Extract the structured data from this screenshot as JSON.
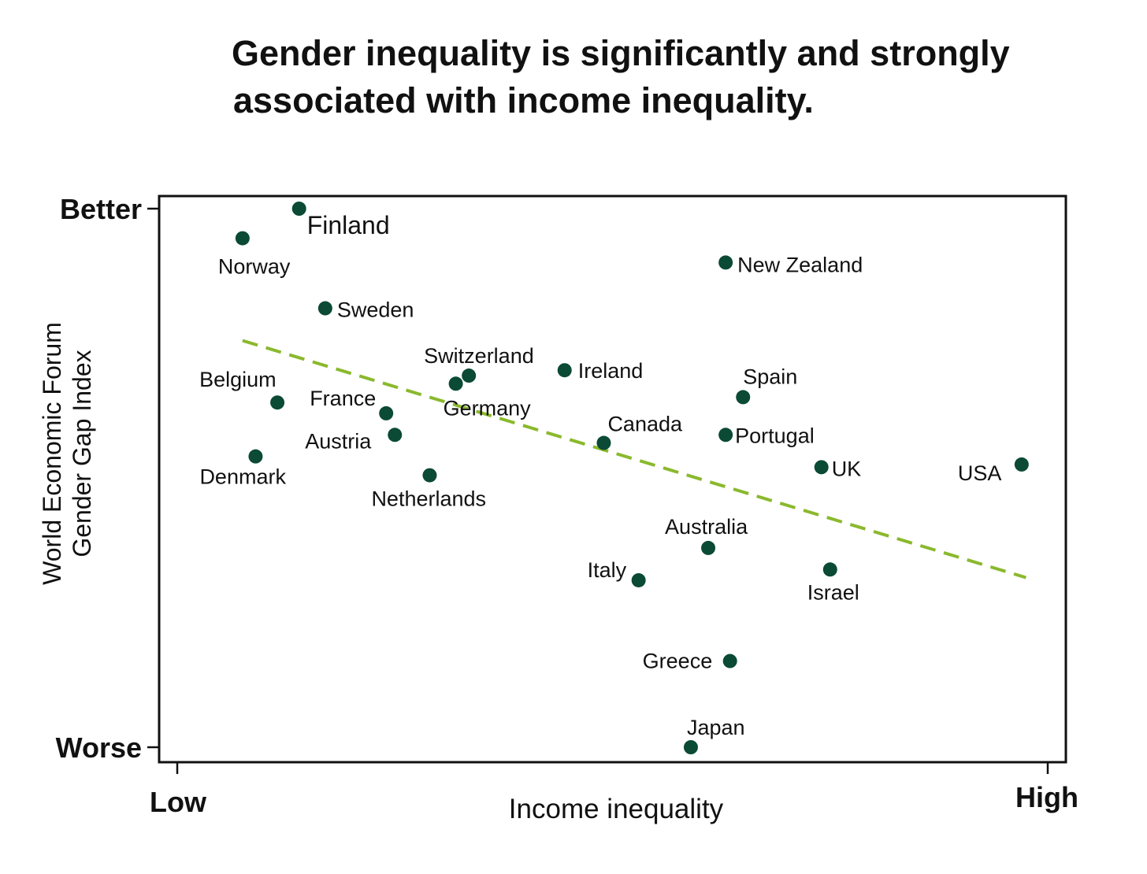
{
  "title": {
    "line1": "Gender inequality is significantly and strongly",
    "line2": "associated with income inequality."
  },
  "colors": {
    "point": "#0b4a34",
    "trend": "#8ab92d",
    "axis": "#111111"
  },
  "chart_data": {
    "type": "scatter",
    "title": "Gender inequality is significantly and strongly associated with income inequality.",
    "xlabel": "Income inequality",
    "ylabel_lines": [
      "World Economic Forum",
      "Gender Gap Index"
    ],
    "x_tick_labels": [
      "Low",
      "High"
    ],
    "y_tick_labels": [
      "Better",
      "Worse"
    ],
    "xlim": [
      0,
      100
    ],
    "ylim": [
      0,
      100
    ],
    "grid": false,
    "legend": "none",
    "points": [
      {
        "name": "Finland",
        "x": 14,
        "y": 100
      },
      {
        "name": "Norway",
        "x": 7.5,
        "y": 94.5
      },
      {
        "name": "New Zealand",
        "x": 63,
        "y": 90
      },
      {
        "name": "Sweden",
        "x": 17,
        "y": 81.5
      },
      {
        "name": "Switzerland",
        "x": 33.5,
        "y": 69
      },
      {
        "name": "Germany",
        "x": 32,
        "y": 67.5
      },
      {
        "name": "Ireland",
        "x": 44.5,
        "y": 70
      },
      {
        "name": "Belgium",
        "x": 11.5,
        "y": 64
      },
      {
        "name": "Spain",
        "x": 65,
        "y": 65
      },
      {
        "name": "France",
        "x": 24,
        "y": 62
      },
      {
        "name": "Austria",
        "x": 25,
        "y": 58
      },
      {
        "name": "Canada",
        "x": 49,
        "y": 56.5
      },
      {
        "name": "Portugal",
        "x": 63,
        "y": 58
      },
      {
        "name": "Denmark",
        "x": 9,
        "y": 54
      },
      {
        "name": "Netherlands",
        "x": 29,
        "y": 50.5
      },
      {
        "name": "UK",
        "x": 74,
        "y": 52
      },
      {
        "name": "USA",
        "x": 97,
        "y": 52.5
      },
      {
        "name": "Australia",
        "x": 61,
        "y": 37
      },
      {
        "name": "Israel",
        "x": 75,
        "y": 33
      },
      {
        "name": "Italy",
        "x": 53,
        "y": 31
      },
      {
        "name": "Greece",
        "x": 63.5,
        "y": 16
      },
      {
        "name": "Japan",
        "x": 59,
        "y": 0
      }
    ],
    "trendline": {
      "style": "dashed",
      "x": [
        7.5,
        97.5
      ],
      "y": [
        75.5,
        31.5
      ]
    }
  }
}
